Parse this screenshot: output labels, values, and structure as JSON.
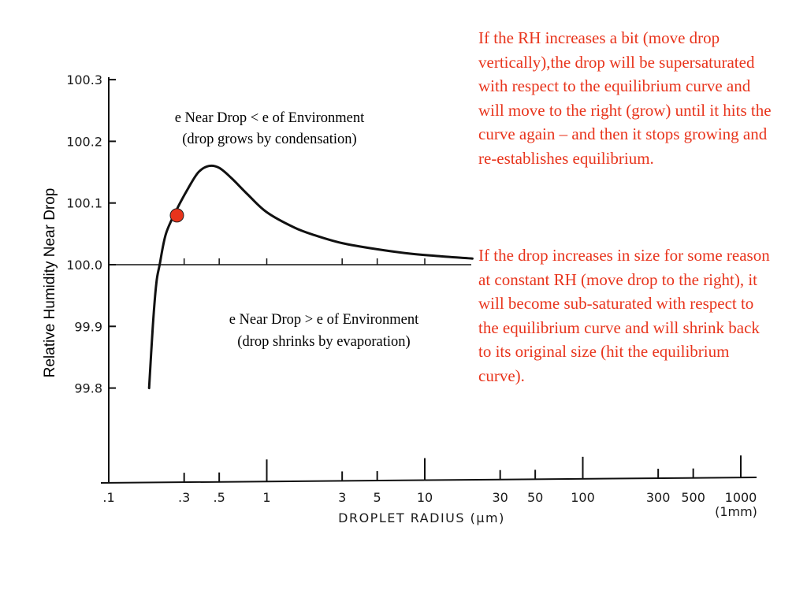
{
  "chart_data": {
    "type": "line",
    "x_scale": "log",
    "xlabel": "DROPLET RADIUS (μm)",
    "ylabel": "Relative Humidity Near Drop",
    "x_ticks": [
      {
        "value": 0.1,
        "label": ".1",
        "major": true
      },
      {
        "value": 0.3,
        "label": ".3",
        "major": false
      },
      {
        "value": 0.5,
        "label": ".5",
        "major": false
      },
      {
        "value": 1,
        "label": "1",
        "major": true
      },
      {
        "value": 3,
        "label": "3",
        "major": false
      },
      {
        "value": 5,
        "label": "5",
        "major": false
      },
      {
        "value": 10,
        "label": "10",
        "major": true
      },
      {
        "value": 30,
        "label": "30",
        "major": false
      },
      {
        "value": 50,
        "label": "50",
        "major": false
      },
      {
        "value": 100,
        "label": "100",
        "major": true
      },
      {
        "value": 300,
        "label": "300",
        "major": false
      },
      {
        "value": 500,
        "label": "500",
        "major": false
      },
      {
        "value": 1000,
        "label": "1000",
        "major": true
      }
    ],
    "x_sublabel": "(1mm)",
    "y_ticks": [
      {
        "value": 100.3,
        "label": "100.3"
      },
      {
        "value": 100.2,
        "label": "100.2"
      },
      {
        "value": 100.1,
        "label": "100.1"
      },
      {
        "value": 100.0,
        "label": "100.0"
      },
      {
        "value": 99.9,
        "label": "99.9"
      },
      {
        "value": 99.8,
        "label": "99.8"
      }
    ],
    "reference_line": {
      "y": 100.0
    },
    "series": [
      {
        "color": "#111111",
        "points": [
          [
            0.18,
            99.8
          ],
          [
            0.19,
            99.9
          ],
          [
            0.2,
            99.97
          ],
          [
            0.21,
            100.0
          ],
          [
            0.23,
            100.05
          ],
          [
            0.27,
            100.09
          ],
          [
            0.32,
            100.125
          ],
          [
            0.37,
            100.15
          ],
          [
            0.43,
            100.16
          ],
          [
            0.5,
            100.157
          ],
          [
            0.6,
            100.14
          ],
          [
            0.75,
            100.115
          ],
          [
            1.0,
            100.085
          ],
          [
            1.5,
            100.06
          ],
          [
            2.0,
            100.048
          ],
          [
            3.0,
            100.035
          ],
          [
            5.0,
            100.025
          ],
          [
            8.0,
            100.018
          ],
          [
            12.0,
            100.014
          ],
          [
            20.0,
            100.01
          ]
        ]
      }
    ],
    "marker": {
      "x": 0.27,
      "y": 100.08,
      "color": "#e8341c"
    },
    "annotations": [
      {
        "lines": [
          "e Near Drop < e of Environment",
          "(drop grows by condensation)"
        ]
      },
      {
        "lines": [
          "e Near Drop > e of Environment",
          "(drop shrinks by evaporation)"
        ]
      }
    ]
  },
  "side_text": {
    "paragraph1": "If the RH increases a bit (move drop vertically),the drop will be supersaturated with respect to the equilibrium curve and will move to the right (grow) until it hits the curve again – and then it stops growing and re-establishes equilibrium.",
    "paragraph2": "If the drop increases in size for some reason at constant RH (move drop to the right), it will become sub-saturated with respect to the equilibrium curve and will shrink back to its original size (hit the equilibrium curve)."
  }
}
